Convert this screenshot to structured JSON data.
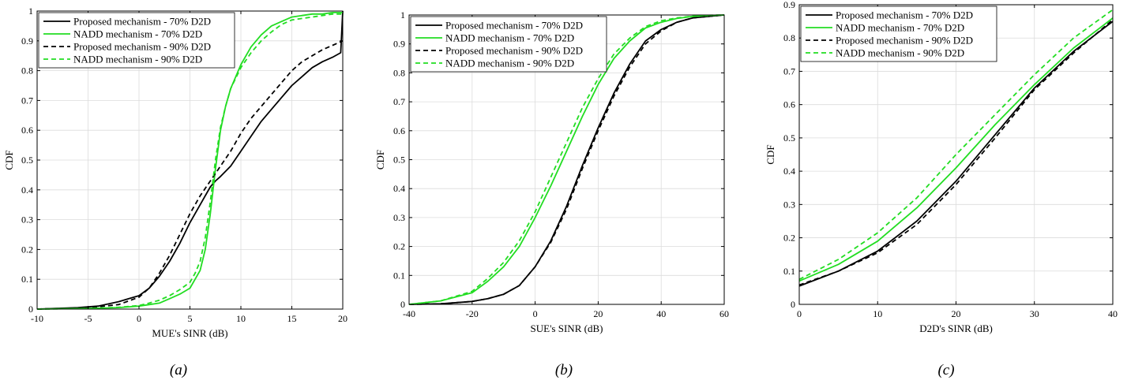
{
  "colors": {
    "black": "#000000",
    "green": "#22dd22",
    "grid": "#dcdcdc"
  },
  "legend_entries": [
    {
      "label": "Proposed mechanism - 70% D2D",
      "color": "#000000",
      "dash": "solid"
    },
    {
      "label": "NADD mechanism - 70% D2D",
      "color": "#22dd22",
      "dash": "solid"
    },
    {
      "label": "Proposed mechanism - 90% D2D",
      "color": "#000000",
      "dash": "dashed"
    },
    {
      "label": "NADD mechanism - 90% D2D",
      "color": "#22dd22",
      "dash": "dashed"
    }
  ],
  "chart_data": [
    {
      "type": "line",
      "sublabel": "(a)",
      "xlabel": "MUE's SINR (dB)",
      "ylabel": "CDF",
      "xlim": [
        -10,
        20
      ],
      "ylim": [
        0,
        1
      ],
      "xticks": [
        -10,
        -5,
        0,
        5,
        10,
        15,
        20
      ],
      "yticks": [
        0,
        0.1,
        0.2,
        0.3,
        0.4,
        0.5,
        0.6,
        0.7,
        0.8,
        0.9,
        1
      ],
      "xtick_labels": [
        "-10",
        "-5",
        "0",
        "5",
        "10",
        "15",
        "20"
      ],
      "ytick_labels": [
        "0",
        "0.1",
        "0.2",
        "0.3",
        "0.4",
        "0.5",
        "0.6",
        "0.7",
        "0.8",
        "0.9",
        "1"
      ],
      "grid": true,
      "legend_position": "top-left",
      "series": [
        {
          "name": "Proposed mechanism - 70% D2D",
          "x": [
            -10,
            -6,
            -4,
            -2,
            -1,
            0,
            1,
            2,
            3,
            4,
            5,
            6,
            7,
            7.5,
            8,
            9,
            10,
            11,
            12,
            13,
            14,
            15,
            16,
            17,
            18,
            19,
            19.8,
            20
          ],
          "y": [
            0,
            0.005,
            0.01,
            0.025,
            0.035,
            0.045,
            0.07,
            0.11,
            0.16,
            0.22,
            0.29,
            0.35,
            0.41,
            0.43,
            0.445,
            0.48,
            0.53,
            0.58,
            0.63,
            0.67,
            0.71,
            0.75,
            0.78,
            0.81,
            0.83,
            0.845,
            0.86,
            1.0
          ]
        },
        {
          "name": "NADD mechanism - 70% D2D",
          "x": [
            -10,
            -5,
            -2,
            0,
            1,
            2,
            3,
            4,
            5,
            5.5,
            6,
            6.5,
            7,
            7.5,
            8,
            8.5,
            9,
            10,
            11,
            12,
            13,
            14,
            15,
            16,
            17,
            18,
            19,
            20
          ],
          "y": [
            0,
            0.002,
            0.005,
            0.01,
            0.015,
            0.02,
            0.035,
            0.05,
            0.07,
            0.1,
            0.13,
            0.2,
            0.32,
            0.47,
            0.6,
            0.68,
            0.74,
            0.82,
            0.88,
            0.92,
            0.95,
            0.965,
            0.98,
            0.985,
            0.99,
            0.99,
            0.995,
            0.995
          ]
        },
        {
          "name": "Proposed mechanism - 90% D2D",
          "x": [
            -10,
            -6,
            -4,
            -2,
            0,
            1,
            2,
            3,
            4,
            5,
            6,
            7,
            7.5,
            8,
            9,
            10,
            11,
            12,
            13,
            14,
            15,
            16,
            17,
            18,
            19,
            20
          ],
          "y": [
            0,
            0.004,
            0.008,
            0.015,
            0.04,
            0.07,
            0.12,
            0.18,
            0.25,
            0.32,
            0.38,
            0.43,
            0.455,
            0.48,
            0.53,
            0.59,
            0.64,
            0.68,
            0.72,
            0.76,
            0.8,
            0.83,
            0.85,
            0.87,
            0.885,
            0.9
          ]
        },
        {
          "name": "NADD mechanism - 90% D2D",
          "x": [
            -10,
            -5,
            -2,
            0,
            1,
            2,
            3,
            4,
            5,
            5.5,
            6,
            6.5,
            7,
            7.5,
            8,
            8.5,
            9,
            10,
            11,
            12,
            13,
            14,
            15,
            16,
            17,
            18,
            19,
            20
          ],
          "y": [
            0,
            0.002,
            0.006,
            0.012,
            0.02,
            0.03,
            0.045,
            0.065,
            0.09,
            0.12,
            0.16,
            0.24,
            0.36,
            0.5,
            0.61,
            0.68,
            0.74,
            0.81,
            0.86,
            0.9,
            0.93,
            0.955,
            0.97,
            0.975,
            0.98,
            0.985,
            0.99,
            0.99
          ]
        }
      ]
    },
    {
      "type": "line",
      "sublabel": "(b)",
      "xlabel": "SUE's SINR (dB)",
      "ylabel": "CDF",
      "xlim": [
        -40,
        60
      ],
      "ylim": [
        0,
        1
      ],
      "xticks": [
        -40,
        -20,
        0,
        20,
        40,
        60
      ],
      "yticks": [
        0,
        0.1,
        0.2,
        0.3,
        0.4,
        0.5,
        0.6,
        0.7,
        0.8,
        0.9,
        1
      ],
      "xtick_labels": [
        "-40",
        "-20",
        "0",
        "20",
        "40",
        "60"
      ],
      "ytick_labels": [
        "0",
        "0.1",
        "0.2",
        "0.3",
        "0.4",
        "0.5",
        "0.6",
        "0.7",
        "0.8",
        "0.9",
        "1"
      ],
      "grid": true,
      "legend_position": "top-left",
      "series": [
        {
          "name": "Proposed mechanism - 70% D2D",
          "x": [
            -40,
            -30,
            -20,
            -15,
            -10,
            -5,
            0,
            5,
            10,
            15,
            20,
            25,
            30,
            35,
            40,
            45,
            50,
            55,
            60
          ],
          "y": [
            0,
            0.002,
            0.01,
            0.02,
            0.035,
            0.065,
            0.13,
            0.22,
            0.34,
            0.48,
            0.61,
            0.73,
            0.83,
            0.91,
            0.95,
            0.975,
            0.99,
            0.995,
            1.0
          ]
        },
        {
          "name": "NADD mechanism - 70% D2D",
          "x": [
            -40,
            -30,
            -20,
            -15,
            -10,
            -5,
            0,
            5,
            10,
            15,
            20,
            25,
            30,
            35,
            40,
            45,
            50,
            55,
            60
          ],
          "y": [
            0,
            0.012,
            0.04,
            0.08,
            0.13,
            0.2,
            0.3,
            0.41,
            0.53,
            0.65,
            0.76,
            0.85,
            0.91,
            0.955,
            0.975,
            0.988,
            0.995,
            0.998,
            1.0
          ]
        },
        {
          "name": "Proposed mechanism - 90% D2D",
          "x": [
            -40,
            -30,
            -20,
            -15,
            -10,
            -5,
            0,
            5,
            10,
            15,
            20,
            25,
            30,
            35,
            40,
            45,
            50,
            55,
            60
          ],
          "y": [
            0,
            0.002,
            0.01,
            0.02,
            0.035,
            0.065,
            0.13,
            0.215,
            0.33,
            0.47,
            0.6,
            0.72,
            0.82,
            0.9,
            0.945,
            0.975,
            0.99,
            0.995,
            1.0
          ]
        },
        {
          "name": "NADD mechanism - 90% D2D",
          "x": [
            -40,
            -30,
            -20,
            -15,
            -10,
            -5,
            0,
            5,
            10,
            15,
            20,
            25,
            30,
            35,
            40,
            45,
            50,
            55,
            60
          ],
          "y": [
            0,
            0.012,
            0.045,
            0.09,
            0.145,
            0.22,
            0.32,
            0.44,
            0.56,
            0.68,
            0.78,
            0.865,
            0.92,
            0.96,
            0.98,
            0.99,
            0.996,
            0.999,
            1.0
          ]
        }
      ]
    },
    {
      "type": "line",
      "sublabel": "(c)",
      "xlabel": "D2D's SINR (dB)",
      "ylabel": "CDF",
      "xlim": [
        0,
        40
      ],
      "ylim": [
        0,
        0.9
      ],
      "xticks": [
        0,
        10,
        20,
        30,
        40
      ],
      "yticks": [
        0,
        0.1,
        0.2,
        0.3,
        0.4,
        0.5,
        0.6,
        0.7,
        0.8,
        0.9
      ],
      "xtick_labels": [
        "0",
        "10",
        "20",
        "30",
        "40"
      ],
      "ytick_labels": [
        "0",
        "0.1",
        "0.2",
        "0.3",
        "0.4",
        "0.5",
        "0.6",
        "0.7",
        "0.8",
        "0.9"
      ],
      "grid": true,
      "legend_position": "top-left",
      "series": [
        {
          "name": "Proposed mechanism - 70% D2D",
          "x": [
            0,
            5,
            10,
            15,
            20,
            25,
            30,
            35,
            40
          ],
          "y": [
            0.055,
            0.1,
            0.16,
            0.25,
            0.37,
            0.51,
            0.65,
            0.76,
            0.85
          ]
        },
        {
          "name": "NADD mechanism - 70% D2D",
          "x": [
            0,
            5,
            10,
            15,
            20,
            25,
            30,
            35,
            40
          ],
          "y": [
            0.07,
            0.12,
            0.19,
            0.29,
            0.41,
            0.54,
            0.66,
            0.77,
            0.86
          ]
        },
        {
          "name": "Proposed mechanism - 90% D2D",
          "x": [
            0,
            5,
            10,
            15,
            20,
            25,
            30,
            35,
            40
          ],
          "y": [
            0.058,
            0.1,
            0.155,
            0.24,
            0.36,
            0.5,
            0.645,
            0.755,
            0.855
          ]
        },
        {
          "name": "NADD mechanism - 90% D2D",
          "x": [
            0,
            5,
            10,
            15,
            20,
            25,
            30,
            35,
            40
          ],
          "y": [
            0.075,
            0.135,
            0.215,
            0.32,
            0.45,
            0.57,
            0.69,
            0.8,
            0.885
          ]
        }
      ]
    }
  ]
}
